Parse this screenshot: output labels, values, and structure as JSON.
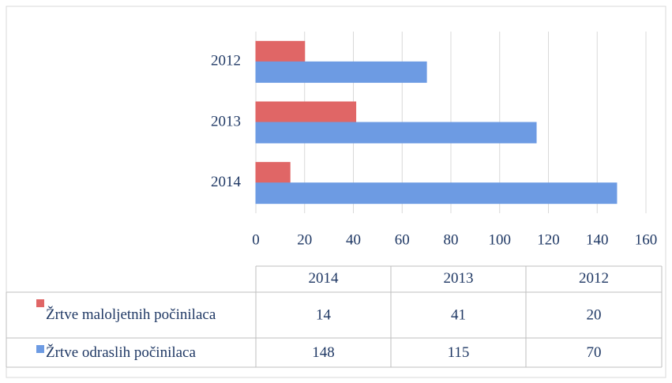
{
  "chart_data": {
    "type": "bar",
    "orientation": "horizontal",
    "categories": [
      "2014",
      "2013",
      "2012"
    ],
    "series": [
      {
        "name": "Žrtve maloljetnih počinilaca",
        "color": "#e06666",
        "values": [
          14,
          41,
          20
        ]
      },
      {
        "name": "Žrtve odraslih počinilaca",
        "color": "#6d9be3",
        "values": [
          148,
          115,
          70
        ]
      }
    ],
    "xlim": [
      0,
      160
    ],
    "xticks": [
      0,
      20,
      40,
      60,
      80,
      100,
      120,
      140,
      160
    ],
    "grid": true,
    "data_table": true
  }
}
